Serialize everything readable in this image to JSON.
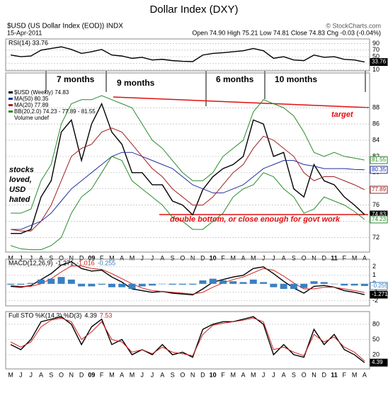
{
  "header": {
    "symbol": "$USD (US Dollar Index (EOD)) INDX",
    "date": "15-Apr-2011",
    "quote": "Open 74.90 High 75.21 Low 74.81 Close 74.83 Chg -0.03 (-0.04%)",
    "credit": "© StockCharts.com"
  },
  "chart_data": [
    {
      "type": "line",
      "title": "Dollar Index (DXY)",
      "categories": [
        "M",
        "J",
        "J",
        "A",
        "S",
        "O",
        "N",
        "D",
        "09",
        "F",
        "M",
        "A",
        "M",
        "J",
        "J",
        "A",
        "S",
        "O",
        "N",
        "D",
        "10",
        "F",
        "M",
        "A",
        "M",
        "J",
        "J",
        "A",
        "S",
        "O",
        "N",
        "D",
        "11",
        "F",
        "M",
        "A"
      ],
      "ylim": [
        70.2,
        92.3
      ],
      "yticks": [
        72,
        74,
        76,
        78,
        80,
        82,
        84,
        86,
        88
      ],
      "legend_note": "Volume undef",
      "series": [
        {
          "name": "$USD (Weekly) 74.83",
          "color": "#000000",
          "end_label": "74.83",
          "values": [
            72.5,
            72.5,
            73,
            77,
            79,
            85,
            86.5,
            81.5,
            86,
            88.5,
            85,
            83.5,
            80,
            80,
            78.5,
            78.5,
            76.5,
            76,
            74.8,
            77.9,
            79.5,
            80.5,
            81,
            82,
            86.5,
            86,
            82,
            82.5,
            78,
            77,
            81,
            79,
            78.5,
            77,
            76,
            74.83
          ]
        },
        {
          "name": "MA(50) 80.35",
          "color": "#1f2f9f",
          "end_label": "80.35",
          "values": [
            73,
            73,
            73.5,
            74,
            75,
            76.5,
            78,
            79,
            80,
            81,
            82,
            82.5,
            82.5,
            82,
            81.5,
            81,
            80.5,
            79.5,
            78.5,
            78,
            77.5,
            77.5,
            78,
            78.5,
            79.5,
            80.5,
            81,
            81.5,
            81.5,
            81,
            80.8,
            80.5,
            80.5,
            80.5,
            80.4,
            80.35
          ]
        },
        {
          "name": "MA(20) 77.89",
          "color": "#a01e1e",
          "end_label": "77.89",
          "values": [
            73,
            72.8,
            72.8,
            74,
            76,
            79,
            82,
            83,
            83.5,
            85,
            85.5,
            85,
            83.5,
            82,
            80.5,
            79.5,
            78,
            77,
            76,
            76,
            77,
            78.5,
            80,
            81,
            83,
            84.5,
            84,
            83,
            82,
            80,
            79,
            79.5,
            79.5,
            79,
            78.5,
            77.89
          ]
        },
        {
          "name": "BB(20,2.0) 74.23 - 77.89 - 81.55",
          "color": "#2a8a2a",
          "end_label": "81.55",
          "end_label_lower": "74.23",
          "values": [
            75,
            75,
            75.5,
            79,
            81,
            86,
            88.5,
            89,
            89,
            89.5,
            89,
            88.5,
            88,
            86,
            84,
            83,
            81.5,
            80,
            79,
            79,
            80,
            82,
            83,
            84,
            87.5,
            89,
            88.5,
            88,
            87,
            85,
            82.5,
            82,
            82.5,
            82,
            81.8,
            81.55
          ],
          "values_lower": [
            71,
            70.6,
            70.5,
            70.5,
            71,
            72,
            75,
            77,
            78,
            80,
            82,
            81.5,
            79,
            78,
            77,
            76,
            74.5,
            74,
            73,
            73,
            74,
            75,
            77,
            78,
            78.5,
            80,
            79.5,
            78,
            77,
            75,
            75.5,
            77,
            76.5,
            76,
            75.2,
            74.23
          ]
        }
      ],
      "annotations": [
        "7 months",
        "9 months",
        "6 months",
        "10 months",
        "target",
        "double bottom, or close enough for govt work"
      ],
      "side_note": [
        "stocks",
        "loved,",
        "USD",
        "hated"
      ]
    },
    {
      "type": "line",
      "label": "RSI(14) 33.76",
      "ylim": [
        7,
        104
      ],
      "yticks": [
        10,
        30,
        50,
        70,
        90
      ],
      "series": [
        {
          "name": "RSI(14)",
          "color": "#000000",
          "end_label": "33.76",
          "values": [
            55,
            50,
            52,
            70,
            75,
            80,
            72,
            60,
            65,
            72,
            55,
            52,
            45,
            48,
            40,
            42,
            38,
            36,
            35,
            55,
            60,
            62,
            65,
            68,
            75,
            68,
            45,
            50,
            40,
            38,
            55,
            48,
            50,
            42,
            40,
            33.76
          ]
        }
      ]
    },
    {
      "type": "line",
      "label": "MACD(12,26,9)",
      "ylim": [
        -2.6,
        2.9
      ],
      "yticks": [
        -2,
        -1,
        0,
        1,
        2
      ],
      "series": [
        {
          "name": "-1.271",
          "color": "#000000",
          "end_label": "-1.271",
          "values": [
            -0.3,
            -0.4,
            -0.2,
            0.5,
            1.2,
            2.2,
            2.6,
            1.8,
            1.5,
            1.6,
            0.8,
            0.2,
            -0.6,
            -0.8,
            -1.0,
            -0.9,
            -1.1,
            -1.2,
            -1.3,
            -0.6,
            0.2,
            0.5,
            0.8,
            1.0,
            1.8,
            2.0,
            1.2,
            0.3,
            -0.5,
            -1.1,
            -0.3,
            -0.2,
            -0.4,
            -0.8,
            -1.0,
            -1.271
          ]
        },
        {
          "name": "-1.016",
          "color": "#d02020",
          "values": [
            -0.2,
            -0.3,
            -0.3,
            0.0,
            0.6,
            1.4,
            2.1,
            2.1,
            1.8,
            1.7,
            1.2,
            0.6,
            0,
            -0.5,
            -0.8,
            -0.9,
            -1.0,
            -1.1,
            -1.2,
            -1.0,
            -0.4,
            0.1,
            0.5,
            0.8,
            1.3,
            1.8,
            1.6,
            0.9,
            0.1,
            -0.6,
            -0.6,
            -0.4,
            -0.4,
            -0.6,
            -0.8,
            -1.016
          ]
        },
        {
          "name": "-0.255",
          "color": "#3a7fc0",
          "kind": "bar",
          "end_label": "-0.255",
          "values": [
            -0.1,
            -0.1,
            0.1,
            0.5,
            0.6,
            0.8,
            0.5,
            -0.3,
            -0.3,
            -0.1,
            -0.4,
            -0.4,
            -0.6,
            -0.3,
            -0.2,
            0,
            -0.1,
            -0.1,
            -0.1,
            0.4,
            0.6,
            0.4,
            0.3,
            0.2,
            0.5,
            0.2,
            -0.4,
            -0.6,
            -0.6,
            -0.5,
            0.3,
            0.2,
            0,
            -0.2,
            -0.2,
            -0.255
          ]
        }
      ]
    },
    {
      "type": "line",
      "label": "Full STO %K(14,3) %D(3)",
      "ylim": [
        -8,
        105
      ],
      "yticks": [
        20,
        50,
        80
      ],
      "categories": [
        "M",
        "J",
        "J",
        "A",
        "S",
        "O",
        "N",
        "D",
        "09",
        "F",
        "M",
        "A",
        "M",
        "J",
        "J",
        "A",
        "S",
        "O",
        "N",
        "D",
        "10",
        "F",
        "M",
        "A",
        "M",
        "J",
        "J",
        "A",
        "S",
        "O",
        "N",
        "D",
        "11",
        "F",
        "M",
        "A"
      ],
      "series": [
        {
          "name": "4.39",
          "color": "#000000",
          "end_label": "4.39",
          "values": [
            40,
            30,
            50,
            85,
            90,
            95,
            80,
            40,
            75,
            90,
            40,
            50,
            20,
            30,
            20,
            40,
            20,
            25,
            15,
            70,
            80,
            85,
            85,
            90,
            95,
            80,
            20,
            40,
            20,
            15,
            70,
            40,
            60,
            30,
            20,
            4.39
          ]
        },
        {
          "name": "7.53",
          "color": "#d02020",
          "values": [
            45,
            35,
            45,
            75,
            88,
            92,
            85,
            50,
            65,
            85,
            50,
            45,
            25,
            30,
            22,
            35,
            25,
            22,
            18,
            60,
            78,
            82,
            85,
            88,
            92,
            85,
            30,
            35,
            25,
            18,
            60,
            45,
            55,
            35,
            25,
            7.53
          ]
        }
      ]
    }
  ]
}
